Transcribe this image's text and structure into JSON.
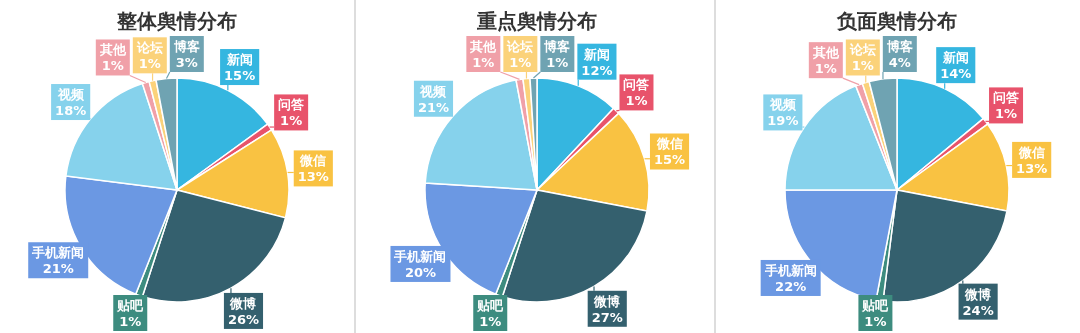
{
  "chart_data": [
    {
      "type": "pie",
      "title": "整体舆情分布",
      "categories": [
        "新闻",
        "问答",
        "微信",
        "微博",
        "贴吧",
        "手机新闻",
        "视频",
        "其他",
        "论坛",
        "博客"
      ],
      "values": [
        15,
        1,
        13,
        26,
        1,
        21,
        18,
        1,
        1,
        3
      ],
      "colors": [
        "#35b6e0",
        "#e8536b",
        "#f9c242",
        "#34606e",
        "#3d8c7f",
        "#6b98e3",
        "#86d2ec",
        "#f0a0a8",
        "#fbd27a",
        "#6fa3b2"
      ],
      "value_labels": [
        "15%",
        "1%",
        "13%",
        "26%",
        "1%",
        "21%",
        "18%",
        "1%",
        "1%",
        "3%"
      ]
    },
    {
      "type": "pie",
      "title": "重点舆情分布",
      "categories": [
        "新闻",
        "问答",
        "微信",
        "微博",
        "贴吧",
        "手机新闻",
        "视频",
        "其他",
        "论坛",
        "博客"
      ],
      "values": [
        12,
        1,
        15,
        27,
        1,
        20,
        21,
        1,
        1,
        1
      ],
      "colors": [
        "#35b6e0",
        "#e8536b",
        "#f9c242",
        "#34606e",
        "#3d8c7f",
        "#6b98e3",
        "#86d2ec",
        "#f0a0a8",
        "#fbd27a",
        "#6fa3b2"
      ],
      "value_labels": [
        "12%",
        "1%",
        "15%",
        "27%",
        "1%",
        "20%",
        "21%",
        "1%",
        "1%",
        "1%"
      ]
    },
    {
      "type": "pie",
      "title": "负面舆情分布",
      "categories": [
        "新闻",
        "问答",
        "微信",
        "微博",
        "贴吧",
        "手机新闻",
        "视频",
        "其他",
        "论坛",
        "博客"
      ],
      "values": [
        14,
        1,
        13,
        24,
        1,
        22,
        19,
        1,
        1,
        4
      ],
      "colors": [
        "#35b6e0",
        "#e8536b",
        "#f9c242",
        "#34606e",
        "#3d8c7f",
        "#6b98e3",
        "#86d2ec",
        "#f0a0a8",
        "#fbd27a",
        "#6fa3b2"
      ],
      "value_labels": [
        "14%",
        "1%",
        "13%",
        "24%",
        "1%",
        "22%",
        "19%",
        "1%",
        "1%",
        "4%"
      ]
    }
  ]
}
